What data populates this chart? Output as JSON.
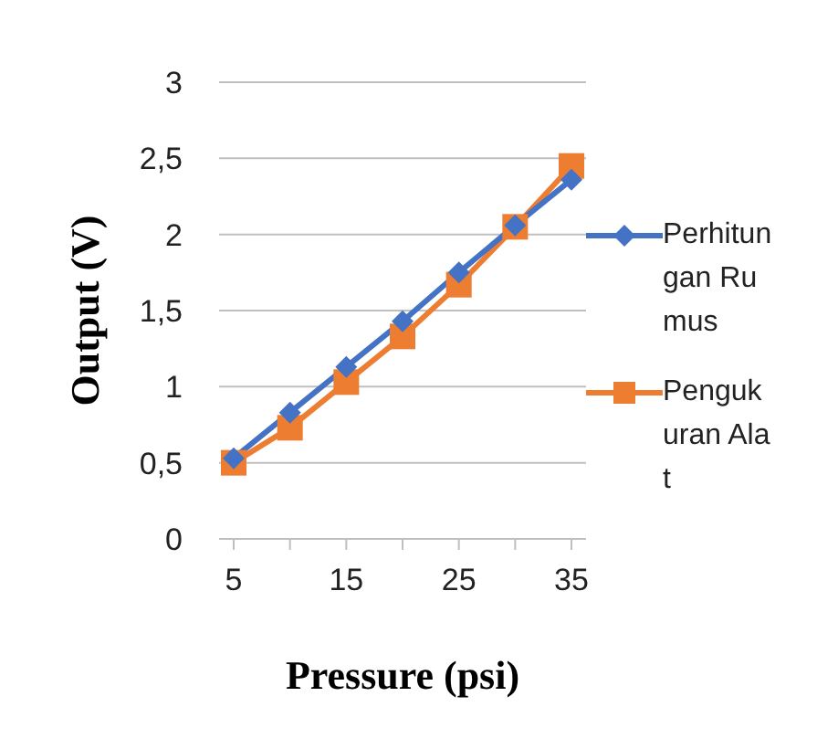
{
  "chart_data": {
    "type": "line",
    "xlabel": "Pressure (psi)",
    "ylabel": "Output (V)",
    "categories": [
      "5",
      null,
      "15",
      null,
      "25",
      null,
      "35"
    ],
    "series": [
      {
        "name": "Perhitungan Rumus",
        "color": "#4472c4",
        "marker": "diamond",
        "values": [
          0.53,
          0.83,
          1.13,
          1.43,
          1.75,
          2.06,
          2.36
        ]
      },
      {
        "name": "Pengukuran Alat",
        "color": "#ed7d31",
        "marker": "square",
        "values": [
          0.5,
          0.73,
          1.03,
          1.33,
          1.67,
          2.05,
          2.45
        ]
      }
    ],
    "ylim": [
      0,
      3
    ],
    "yticks": [
      0,
      {
        "value": 0.5,
        "label": "0,5"
      },
      1,
      {
        "value": 1.5,
        "label": "1,5"
      },
      2,
      {
        "value": 2.5,
        "label": "2,5"
      },
      3
    ],
    "grid": "y",
    "legend": "right"
  }
}
